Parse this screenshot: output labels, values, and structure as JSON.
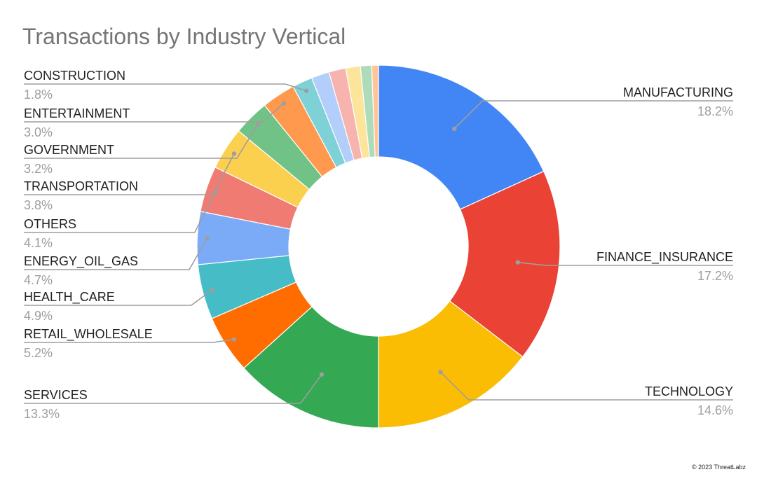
{
  "chart_title": "Transactions by Industry Vertical",
  "copyright": "© 2023 ThreatLabz",
  "chart_data": {
    "type": "pie",
    "title": "Transactions by Industry Vertical",
    "donut": true,
    "legend": "none",
    "slices": [
      {
        "label": "MANUFACTURING",
        "value": 18.2,
        "display": "18.2%",
        "color": "#4285f4"
      },
      {
        "label": "FINANCE_INSURANCE",
        "value": 17.2,
        "display": "17.2%",
        "color": "#ea4335"
      },
      {
        "label": "TECHNOLOGY",
        "value": 14.6,
        "display": "14.6%",
        "color": "#fbbc04"
      },
      {
        "label": "SERVICES",
        "value": 13.3,
        "display": "13.3%",
        "color": "#34a853"
      },
      {
        "label": "RETAIL_WHOLESALE",
        "value": 5.2,
        "display": "5.2%",
        "color": "#ff6d01"
      },
      {
        "label": "HEALTH_CARE",
        "value": 4.9,
        "display": "4.9%",
        "color": "#46bdc6"
      },
      {
        "label": "ENERGY_OIL_GAS",
        "value": 4.7,
        "display": "4.7%",
        "color": "#7baaf7"
      },
      {
        "label": "OTHERS",
        "value": 4.1,
        "display": "4.1%",
        "color": "#f07b72"
      },
      {
        "label": "TRANSPORTATION",
        "value": 3.8,
        "display": "3.8%",
        "color": "#fcd04f"
      },
      {
        "label": "GOVERNMENT",
        "value": 3.2,
        "display": "3.2%",
        "color": "#71c287"
      },
      {
        "label": "ENTERTAINMENT",
        "value": 3.0,
        "display": "3.0%",
        "color": "#ff994d"
      },
      {
        "label": "CONSTRUCTION",
        "value": 1.8,
        "display": "1.8%",
        "color": "#7ed1d7"
      },
      {
        "label": "",
        "value": 1.6,
        "display": "",
        "color": "#b3cefb"
      },
      {
        "label": "",
        "value": 1.5,
        "display": "",
        "color": "#f7b4ae"
      },
      {
        "label": "",
        "value": 1.3,
        "display": "",
        "color": "#fde49b"
      },
      {
        "label": "",
        "value": 1.0,
        "display": "",
        "color": "#aedcba"
      },
      {
        "label": "",
        "value": 0.6,
        "display": "",
        "color": "#ffc599"
      }
    ]
  }
}
